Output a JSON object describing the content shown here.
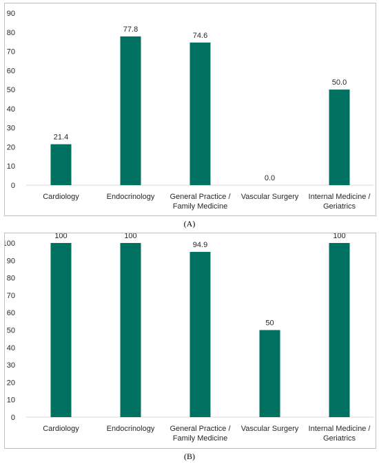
{
  "chart_data": [
    {
      "type": "bar",
      "categories": [
        "Cardiology",
        "Endocrinology",
        "General Practice / Family Medicine",
        "Vascular Surgery",
        "Internal Medicine / Geriatrics"
      ],
      "category_lines": [
        [
          "Cardiology"
        ],
        [
          "Endocrinology"
        ],
        [
          "General Practice /",
          "Family Medicine"
        ],
        [
          "Vascular Surgery"
        ],
        [
          "Internal Medicine /",
          "Geriatrics"
        ]
      ],
      "values": [
        21.4,
        77.8,
        74.6,
        0.0,
        50.0
      ],
      "data_labels": [
        "21.4",
        "77.8",
        "74.6",
        "0.0",
        "50.0"
      ],
      "ylim": [
        0,
        90
      ],
      "yticks": [
        0,
        10,
        20,
        30,
        40,
        50,
        60,
        70,
        80,
        90
      ],
      "bar_color": "#007060",
      "grid": false,
      "title": "",
      "xlabel": "",
      "ylabel": ""
    },
    {
      "type": "bar",
      "categories": [
        "Cardiology",
        "Endocrinology",
        "General Practice / Family Medicine",
        "Vascular Surgery",
        "Internal Medicine / Geriatrics"
      ],
      "category_lines": [
        [
          "Cardiology"
        ],
        [
          "Endocrinology"
        ],
        [
          "General Practice /",
          "Family Medicine"
        ],
        [
          "Vascular Surgery"
        ],
        [
          "Internal Medicine /",
          "Geriatrics"
        ]
      ],
      "values": [
        100,
        100,
        94.9,
        50,
        100
      ],
      "data_labels": [
        "100",
        "100",
        "94.9",
        "50",
        "100"
      ],
      "ylim": [
        0,
        100
      ],
      "yticks": [
        0,
        10,
        20,
        30,
        40,
        50,
        60,
        70,
        80,
        90,
        100
      ],
      "bar_color": "#007060",
      "grid": false,
      "title": "",
      "xlabel": "",
      "ylabel": ""
    }
  ],
  "captions": {
    "a": "(A)",
    "b": "(B)"
  }
}
